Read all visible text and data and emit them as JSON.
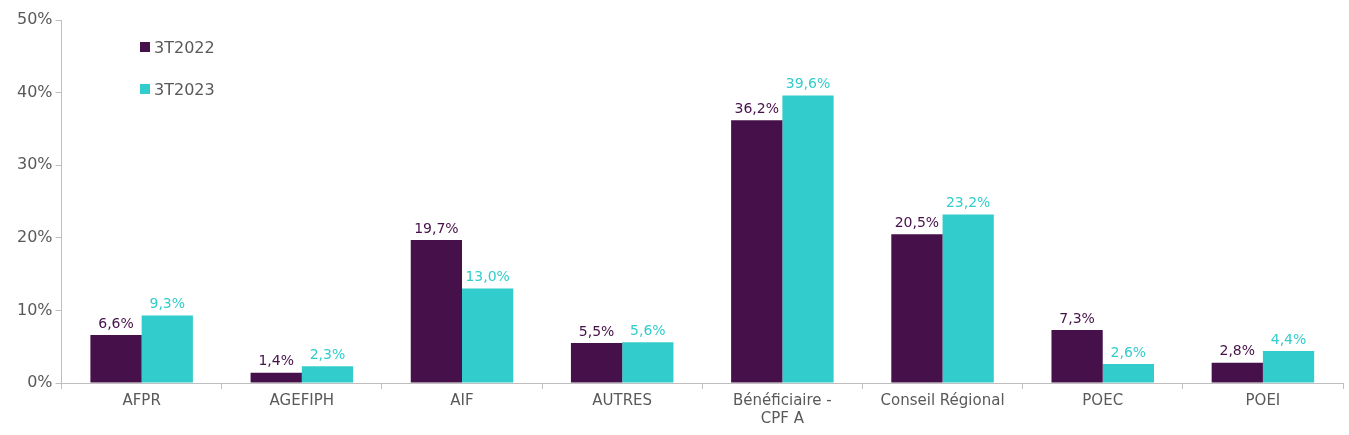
{
  "chart_data": {
    "type": "bar",
    "categories": [
      "AFPR",
      "AGEFIPH",
      "AIF",
      "AUTRES",
      "Bénéficiaire - CPF A",
      "Conseil Régional",
      "POEC",
      "POEI"
    ],
    "series": [
      {
        "name": "3T2022",
        "color": "#46104b",
        "values": [
          6.6,
          1.4,
          19.7,
          5.5,
          36.2,
          20.5,
          7.3,
          2.8
        ],
        "value_labels": [
          "6,6%",
          "1,4%",
          "19,7%",
          "5,5%",
          "36,2%",
          "20,5%",
          "7,3%",
          "2,8%"
        ]
      },
      {
        "name": "3T2023",
        "color": "#33cccc",
        "values": [
          9.3,
          2.3,
          13.0,
          5.6,
          39.6,
          23.2,
          2.6,
          4.4
        ],
        "value_labels": [
          "9,3%",
          "2,3%",
          "13,0%",
          "5,6%",
          "39,6%",
          "23,2%",
          "2,6%",
          "4,4%"
        ]
      }
    ],
    "ylim": [
      0,
      50
    ],
    "yticks": [
      {
        "value": 0,
        "label": "0%"
      },
      {
        "value": 10,
        "label": "10%"
      },
      {
        "value": 20,
        "label": "20%"
      },
      {
        "value": 30,
        "label": "30%"
      },
      {
        "value": 40,
        "label": "40%"
      },
      {
        "value": 50,
        "label": "50%"
      }
    ],
    "grid": false,
    "legend": "top left"
  }
}
